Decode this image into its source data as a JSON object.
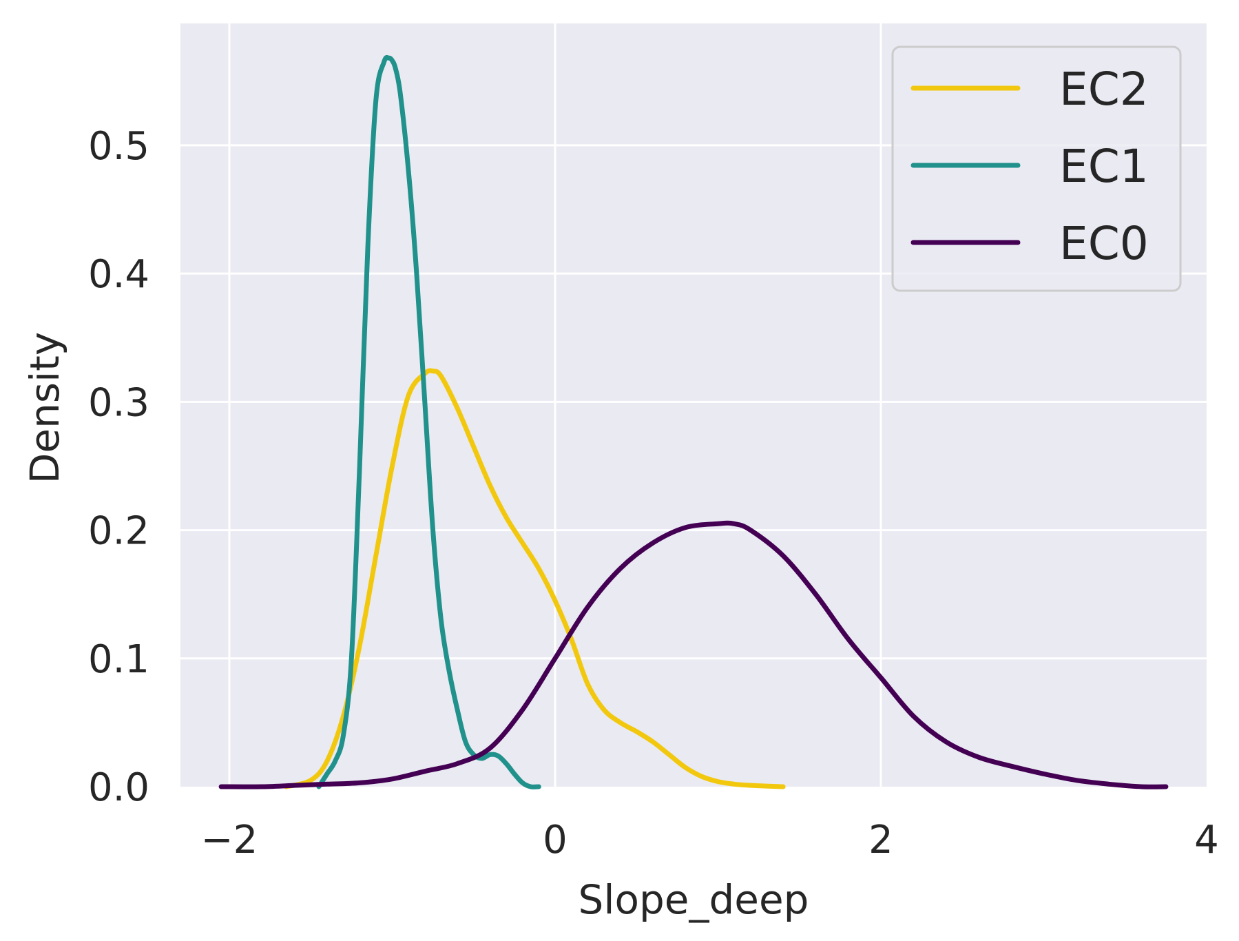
{
  "chart_data": {
    "type": "line",
    "title": "",
    "xlabel": "Slope_deep",
    "ylabel": "Density",
    "xlim": [
      -2.3,
      4.0
    ],
    "ylim": [
      0.0,
      0.595
    ],
    "xticks": [
      -2,
      0,
      2,
      4
    ],
    "xtick_labels": [
      "−2",
      "0",
      "2",
      "4"
    ],
    "yticks": [
      0.0,
      0.1,
      0.2,
      0.3,
      0.4,
      0.5
    ],
    "ytick_labels": [
      "0.0",
      "0.1",
      "0.2",
      "0.3",
      "0.4",
      "0.5"
    ],
    "grid": true,
    "legend_position": "top-right",
    "background": "#eaeaf2",
    "series": [
      {
        "name": "EC2",
        "color": "#f2c80f",
        "x": [
          -1.65,
          -1.5,
          -1.4,
          -1.3,
          -1.2,
          -1.1,
          -1.0,
          -0.9,
          -0.8,
          -0.75,
          -0.7,
          -0.6,
          -0.5,
          -0.4,
          -0.3,
          -0.2,
          -0.1,
          0.0,
          0.1,
          0.2,
          0.3,
          0.4,
          0.5,
          0.6,
          0.7,
          0.8,
          0.9,
          1.0,
          1.1,
          1.2,
          1.4
        ],
        "y": [
          0.0,
          0.005,
          0.02,
          0.055,
          0.11,
          0.18,
          0.25,
          0.305,
          0.322,
          0.324,
          0.32,
          0.295,
          0.265,
          0.235,
          0.21,
          0.19,
          0.17,
          0.145,
          0.115,
          0.08,
          0.06,
          0.05,
          0.043,
          0.035,
          0.025,
          0.015,
          0.008,
          0.004,
          0.002,
          0.001,
          0.0
        ]
      },
      {
        "name": "EC1",
        "color": "#21918c",
        "x": [
          -1.45,
          -1.4,
          -1.35,
          -1.3,
          -1.25,
          -1.2,
          -1.15,
          -1.1,
          -1.05,
          -1.02,
          -1.0,
          -0.98,
          -0.95,
          -0.9,
          -0.85,
          -0.8,
          -0.75,
          -0.7,
          -0.65,
          -0.6,
          -0.55,
          -0.5,
          -0.45,
          -0.4,
          -0.35,
          -0.3,
          -0.25,
          -0.2,
          -0.15,
          -0.1
        ],
        "y": [
          0.0,
          0.01,
          0.02,
          0.04,
          0.1,
          0.25,
          0.42,
          0.535,
          0.565,
          0.568,
          0.566,
          0.56,
          0.54,
          0.48,
          0.4,
          0.3,
          0.2,
          0.13,
          0.09,
          0.06,
          0.035,
          0.025,
          0.022,
          0.025,
          0.024,
          0.018,
          0.01,
          0.003,
          0.0,
          0.0
        ]
      },
      {
        "name": "EC0",
        "color": "#440154",
        "x": [
          -2.05,
          -1.8,
          -1.6,
          -1.4,
          -1.2,
          -1.0,
          -0.8,
          -0.6,
          -0.4,
          -0.2,
          0.0,
          0.2,
          0.4,
          0.6,
          0.8,
          1.0,
          1.1,
          1.2,
          1.4,
          1.6,
          1.8,
          2.0,
          2.2,
          2.4,
          2.6,
          2.8,
          3.0,
          3.2,
          3.4,
          3.6,
          3.75
        ],
        "y": [
          0.0,
          0.0,
          0.001,
          0.002,
          0.003,
          0.006,
          0.012,
          0.018,
          0.03,
          0.06,
          0.1,
          0.14,
          0.17,
          0.19,
          0.202,
          0.205,
          0.205,
          0.2,
          0.18,
          0.15,
          0.115,
          0.085,
          0.055,
          0.035,
          0.023,
          0.016,
          0.01,
          0.005,
          0.002,
          0.0,
          0.0
        ]
      }
    ]
  }
}
